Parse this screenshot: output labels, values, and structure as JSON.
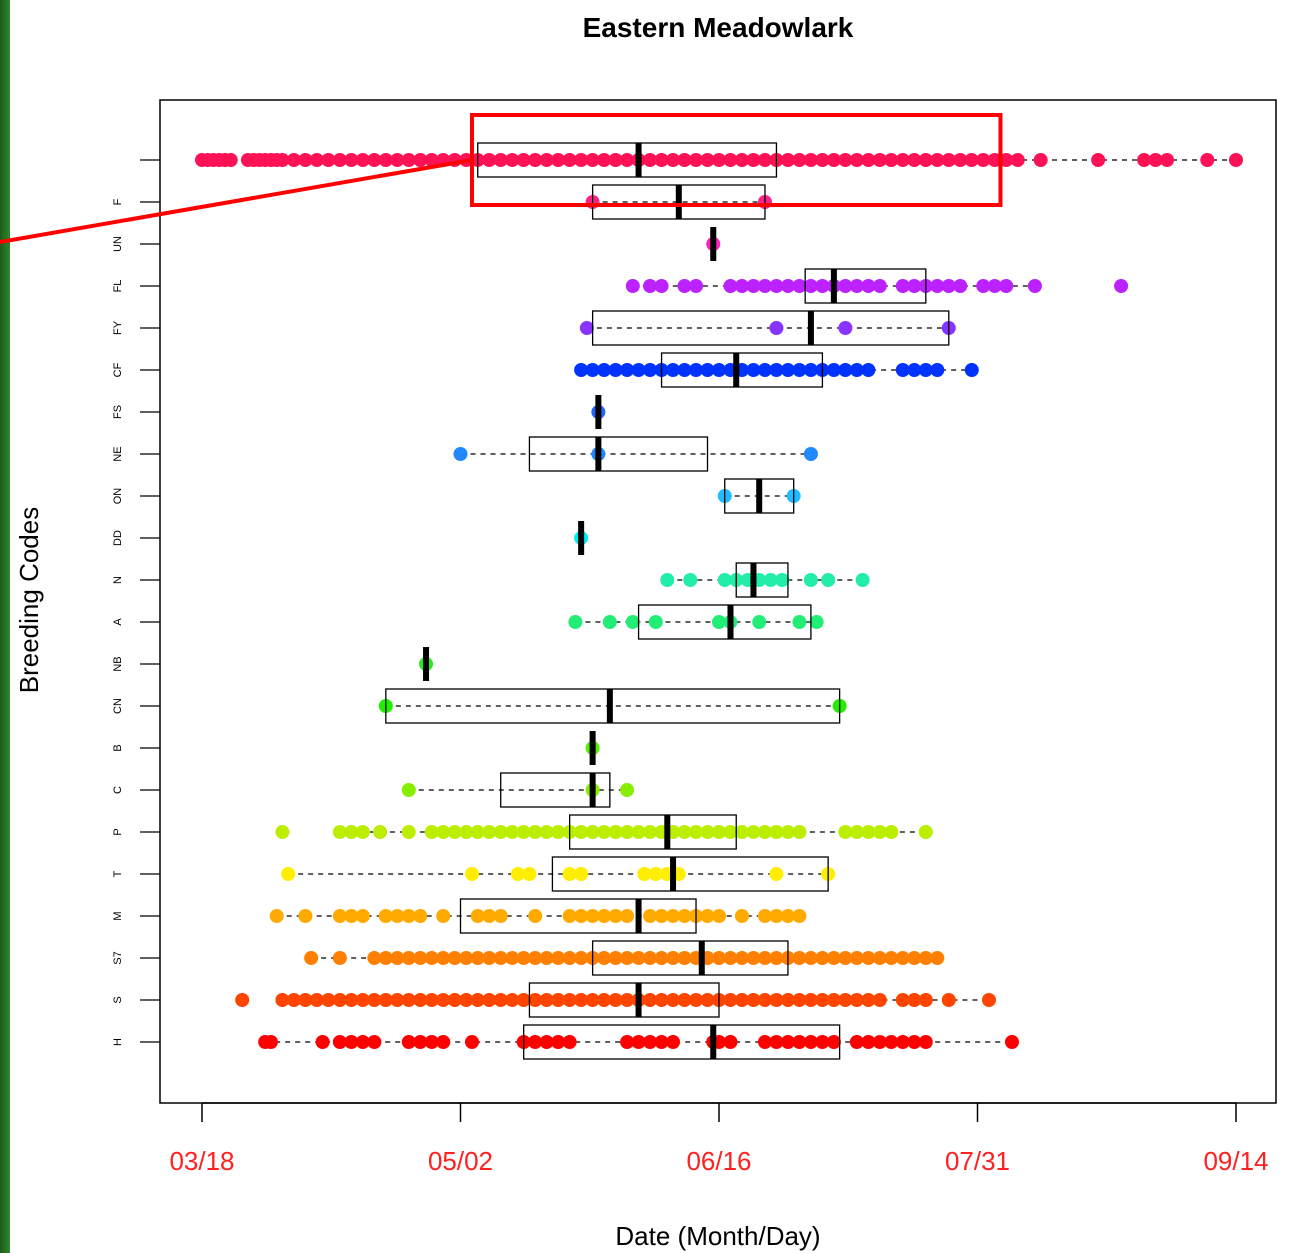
{
  "chart_data": {
    "type": "boxplot",
    "orientation": "horizontal",
    "title": "Eastern Meadowlark",
    "xlabel": "Date (Month/Day)",
    "ylabel": "Breeding Codes",
    "x_ticks": [
      {
        "label": "03/18",
        "day": 0
      },
      {
        "label": "05/02",
        "day": 45
      },
      {
        "label": "06/16",
        "day": 90
      },
      {
        "label": "07/31",
        "day": 135
      },
      {
        "label": "09/14",
        "day": 180
      }
    ],
    "xlim": [
      "03/13",
      "09/21"
    ],
    "highlight": {
      "series": "(unlabeled top row)",
      "from": "05/04",
      "to": "08/04",
      "color": "#ff0000"
    },
    "series": [
      {
        "code": "H",
        "color": "#ff0000",
        "q1": 56,
        "median": 89,
        "q3": 111,
        "whisker_low": 11,
        "whisker_high": 141,
        "points": [
          11,
          12,
          21,
          24,
          26,
          28,
          30,
          36,
          38,
          40,
          42,
          47,
          56,
          58,
          60,
          62,
          64,
          74,
          76,
          78,
          80,
          82,
          89,
          90,
          92,
          98,
          100,
          102,
          104,
          106,
          108,
          110,
          114,
          116,
          118,
          120,
          122,
          124,
          126,
          141
        ]
      },
      {
        "code": "S",
        "color": "#ff4400",
        "q1": 57,
        "median": 76,
        "q3": 90,
        "whisker_low": 14,
        "whisker_high": 137,
        "points": [
          7,
          14,
          16,
          18,
          20,
          22,
          24,
          26,
          28,
          30,
          32,
          34,
          36,
          38,
          40,
          42,
          44,
          46,
          48,
          50,
          52,
          54,
          56,
          58,
          60,
          62,
          64,
          66,
          68,
          70,
          72,
          74,
          76,
          78,
          80,
          82,
          84,
          86,
          88,
          90,
          92,
          94,
          96,
          98,
          100,
          102,
          104,
          106,
          108,
          110,
          112,
          114,
          116,
          118,
          122,
          124,
          126,
          130,
          137
        ]
      },
      {
        "code": "S7",
        "color": "#ff8000",
        "q1": 68,
        "median": 87,
        "q3": 102,
        "whisker_low": 19,
        "whisker_high": 128,
        "points": [
          19,
          24,
          30,
          32,
          34,
          36,
          38,
          40,
          42,
          44,
          46,
          48,
          50,
          52,
          54,
          56,
          58,
          60,
          62,
          64,
          66,
          68,
          70,
          72,
          74,
          76,
          78,
          80,
          82,
          84,
          86,
          88,
          90,
          92,
          94,
          96,
          98,
          100,
          102,
          104,
          106,
          108,
          110,
          112,
          114,
          116,
          118,
          120,
          122,
          124,
          126,
          128
        ]
      },
      {
        "code": "M",
        "color": "#ffaa00",
        "q1": 45,
        "median": 76,
        "q3": 86,
        "whisker_low": 13,
        "whisker_high": 104,
        "points": [
          13,
          18,
          24,
          26,
          28,
          32,
          34,
          36,
          38,
          42,
          48,
          50,
          52,
          58,
          64,
          66,
          68,
          70,
          72,
          74,
          78,
          80,
          82,
          84,
          86,
          88,
          90,
          94,
          98,
          100,
          102,
          104
        ]
      },
      {
        "code": "T",
        "color": "#ffee00",
        "q1": 61,
        "median": 82,
        "q3": 109,
        "whisker_low": 15,
        "whisker_high": 109,
        "points": [
          15,
          47,
          55,
          57,
          64,
          66,
          77,
          79,
          81,
          83,
          100,
          109
        ]
      },
      {
        "code": "P",
        "color": "#bbee00",
        "q1": 64,
        "median": 81,
        "q3": 93,
        "whisker_low": 24,
        "whisker_high": 126,
        "points": [
          14,
          24,
          26,
          28,
          31,
          36,
          40,
          42,
          44,
          46,
          48,
          50,
          52,
          54,
          56,
          58,
          60,
          62,
          64,
          66,
          68,
          70,
          72,
          74,
          76,
          78,
          80,
          82,
          84,
          86,
          88,
          90,
          92,
          94,
          96,
          98,
          100,
          102,
          104,
          112,
          114,
          116,
          118,
          120,
          126
        ]
      },
      {
        "code": "C",
        "color": "#88ee00",
        "q1": 52,
        "median": 68,
        "q3": 71,
        "whisker_low": 36,
        "whisker_high": 74,
        "points": [
          36,
          68,
          74
        ]
      },
      {
        "code": "B",
        "color": "#55ee00",
        "q1": 68,
        "median": 68,
        "q3": 68,
        "whisker_low": 68,
        "whisker_high": 68,
        "points": [
          68
        ]
      },
      {
        "code": "CN",
        "color": "#22ee00",
        "q1": 32,
        "median": 71,
        "q3": 111,
        "whisker_low": 32,
        "whisker_high": 111,
        "points": [
          32,
          111
        ]
      },
      {
        "code": "NB",
        "color": "#22ee22",
        "q1": 39,
        "median": 39,
        "q3": 39,
        "whisker_low": 39,
        "whisker_high": 39,
        "points": [
          39
        ]
      },
      {
        "code": "A",
        "color": "#22ee77",
        "q1": 76,
        "median": 92,
        "q3": 106,
        "whisker_low": 65,
        "whisker_high": 107,
        "points": [
          65,
          71,
          75,
          79,
          90,
          92,
          97,
          104,
          107
        ]
      },
      {
        "code": "N",
        "color": "#22eeaa",
        "q1": 93,
        "median": 96,
        "q3": 102,
        "whisker_low": 81,
        "whisker_high": 115,
        "points": [
          81,
          85,
          91,
          93,
          95,
          97,
          99,
          101,
          106,
          109,
          115
        ]
      },
      {
        "code": "DD",
        "color": "#00eeee",
        "q1": 66,
        "median": 66,
        "q3": 66,
        "whisker_low": 66,
        "whisker_high": 66,
        "points": [
          66
        ]
      },
      {
        "code": "ON",
        "color": "#22bbff",
        "q1": 91,
        "median": 97,
        "q3": 103,
        "whisker_low": 91,
        "whisker_high": 103,
        "points": [
          91,
          103
        ]
      },
      {
        "code": "NE",
        "color": "#2288ff",
        "q1": 57,
        "median": 69,
        "q3": 88,
        "whisker_low": 45,
        "whisker_high": 106,
        "points": [
          45,
          69,
          106
        ]
      },
      {
        "code": "FS",
        "color": "#2266ff",
        "q1": 69,
        "median": 69,
        "q3": 69,
        "whisker_low": 69,
        "whisker_high": 69,
        "points": [
          69
        ]
      },
      {
        "code": "CF",
        "color": "#0033ff",
        "q1": 80,
        "median": 93,
        "q3": 108,
        "whisker_low": 66,
        "whisker_high": 134,
        "points": [
          66,
          68,
          70,
          72,
          74,
          76,
          78,
          80,
          82,
          84,
          86,
          88,
          90,
          92,
          94,
          96,
          98,
          100,
          102,
          104,
          106,
          108,
          110,
          112,
          114,
          116,
          122,
          124,
          126,
          128,
          134
        ]
      },
      {
        "code": "FY",
        "color": "#8833ff",
        "q1": 68,
        "median": 106,
        "q3": 130,
        "whisker_low": 67,
        "whisker_high": 130,
        "points": [
          67,
          100,
          112,
          130
        ]
      },
      {
        "code": "FL",
        "color": "#bb22ff",
        "q1": 105,
        "median": 110,
        "q3": 126,
        "whisker_low": 75,
        "whisker_high": 145,
        "points": [
          75,
          78,
          80,
          84,
          86,
          92,
          94,
          96,
          98,
          100,
          102,
          104,
          106,
          108,
          110,
          112,
          114,
          116,
          118,
          122,
          124,
          126,
          128,
          130,
          132,
          136,
          138,
          140,
          145,
          160
        ]
      },
      {
        "code": "UN",
        "color": "#ff22bb",
        "q1": 89,
        "median": 89,
        "q3": 89,
        "whisker_low": 89,
        "whisker_high": 89,
        "points": [
          89
        ]
      },
      {
        "code": "F",
        "color": "#ff2288",
        "q1": 68,
        "median": 83,
        "q3": 98,
        "whisker_low": 68,
        "whisker_high": 98,
        "points": [
          68,
          98
        ]
      },
      {
        "code": "",
        "color": "#ff1155",
        "q1": 48,
        "median": 76,
        "q3": 100,
        "whisker_low": 0,
        "whisker_high": 180,
        "points": [
          0,
          1,
          2,
          3,
          4,
          5,
          8,
          9,
          10,
          11,
          12,
          13,
          14,
          16,
          18,
          20,
          22,
          24,
          26,
          28,
          30,
          32,
          34,
          36,
          38,
          40,
          42,
          44,
          46,
          48,
          50,
          52,
          54,
          56,
          58,
          60,
          62,
          64,
          66,
          68,
          70,
          72,
          74,
          76,
          78,
          80,
          82,
          84,
          86,
          88,
          90,
          92,
          94,
          96,
          98,
          100,
          102,
          104,
          106,
          108,
          110,
          112,
          114,
          116,
          118,
          120,
          122,
          124,
          126,
          128,
          130,
          132,
          134,
          136,
          138,
          140,
          142,
          146,
          156,
          164,
          166,
          168,
          175,
          180
        ]
      }
    ]
  }
}
